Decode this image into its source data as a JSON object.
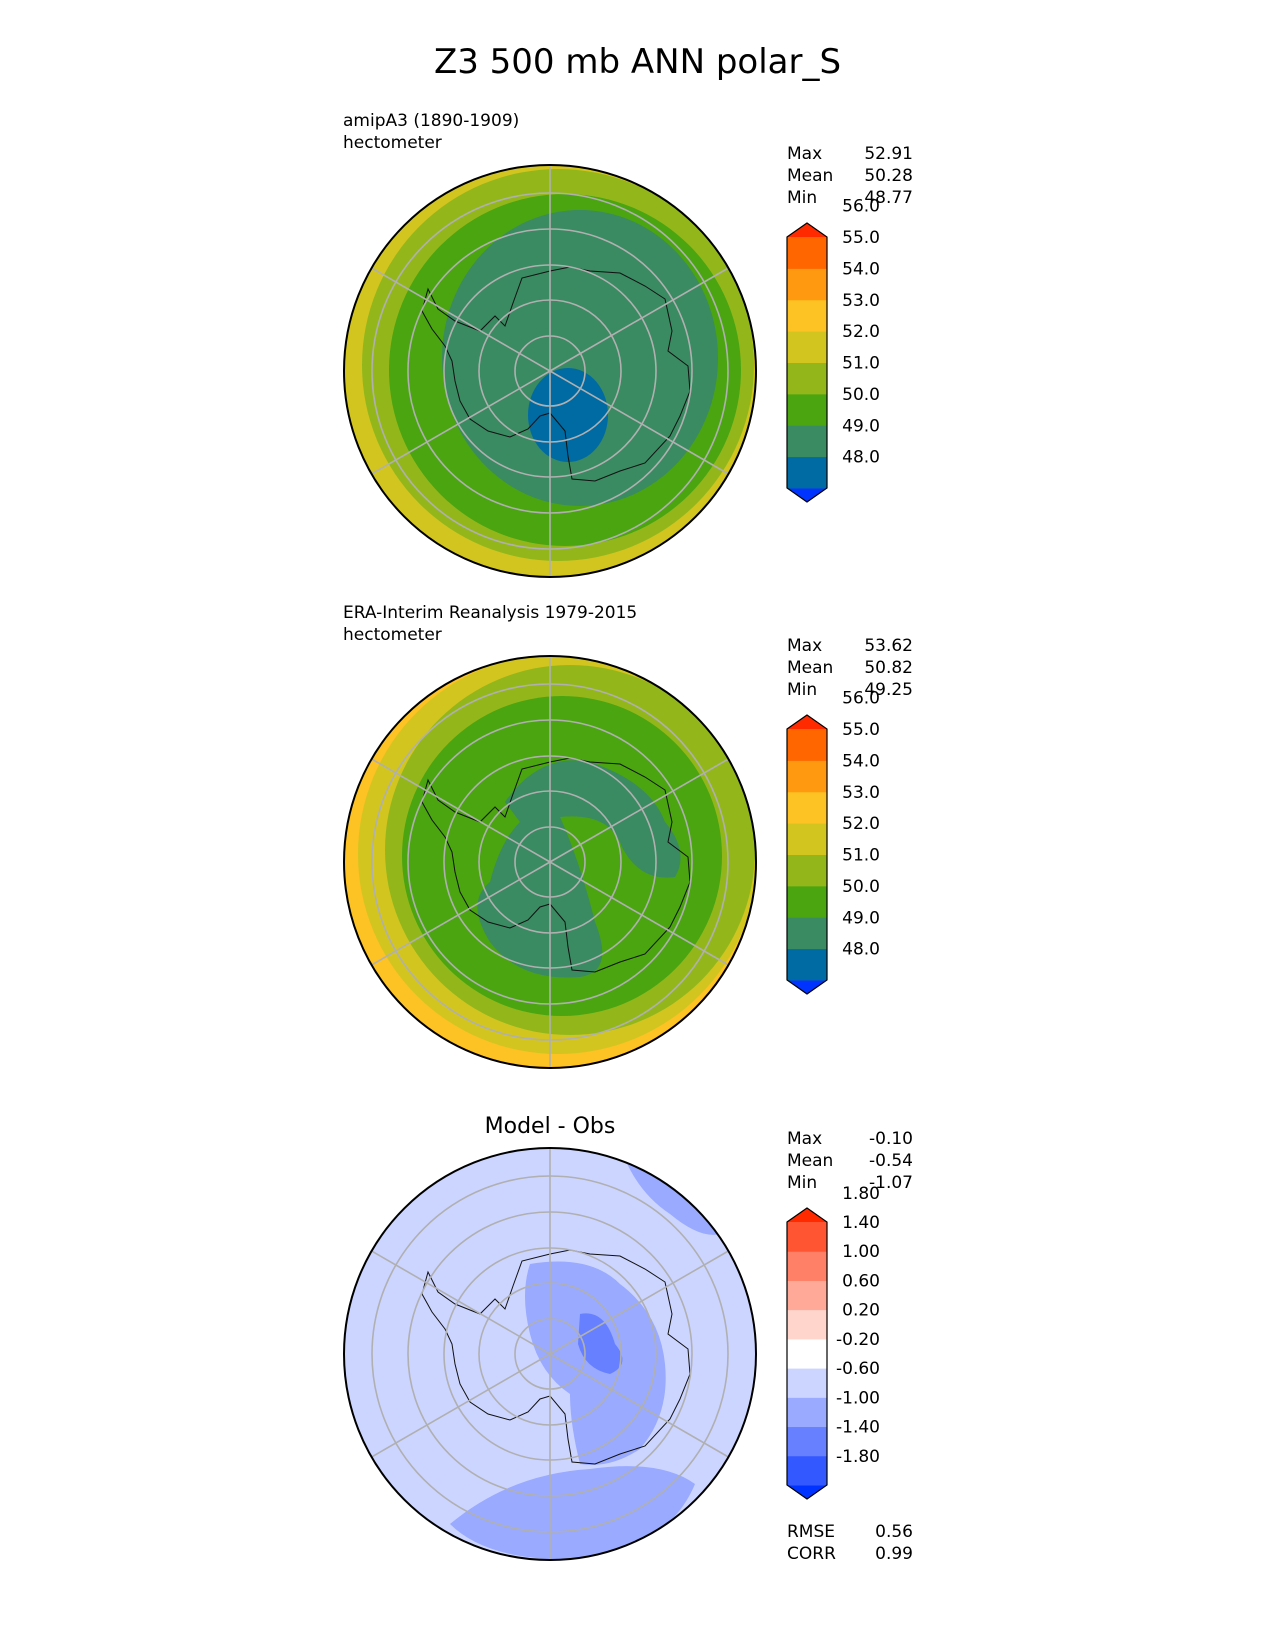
{
  "title": "Z3 500 mb ANN polar_S",
  "panels": [
    {
      "subtitle": "amipA3 (1890-1909)",
      "units": "hectometer",
      "stats": {
        "max_label": "Max",
        "max": "52.91",
        "mean_label": "Mean",
        "mean": "50.28",
        "min_label": "Min",
        "min": "48.77"
      }
    },
    {
      "subtitle": "ERA-Interim Reanalysis 1979-2015",
      "units": "hectometer",
      "stats": {
        "max_label": "Max",
        "max": "53.62",
        "mean_label": "Mean",
        "mean": "50.82",
        "min_label": "Min",
        "min": "49.25"
      }
    },
    {
      "subtitle": "Model - Obs",
      "stats": {
        "max_label": "Max",
        "max": "-0.10",
        "mean_label": "Mean",
        "mean": "-0.54",
        "min_label": "Min",
        "min": "-1.07"
      },
      "metrics": {
        "rmse_label": "RMSE",
        "rmse": "0.56",
        "corr_label": "CORR",
        "corr": "0.99"
      }
    }
  ],
  "chart_data": [
    {
      "type": "heatmap",
      "projection": "south polar stereographic",
      "title": "amipA3 (1890-1909)",
      "units": "hectometer",
      "colorbar": {
        "levels": [
          "48.0",
          "49.0",
          "50.0",
          "51.0",
          "52.0",
          "53.0",
          "54.0",
          "55.0",
          "56.0"
        ],
        "colors": [
          "#0033ff",
          "#006aa3",
          "#3a8a62",
          "#4aa511",
          "#93b71a",
          "#d2c520",
          "#fdc223",
          "#ff9a10",
          "#ff6600",
          "#ff2a00"
        ],
        "extend": "both"
      }
    },
    {
      "type": "heatmap",
      "projection": "south polar stereographic",
      "title": "ERA-Interim Reanalysis 1979-2015",
      "units": "hectometer",
      "colorbar": {
        "levels": [
          "48.0",
          "49.0",
          "50.0",
          "51.0",
          "52.0",
          "53.0",
          "54.0",
          "55.0",
          "56.0"
        ],
        "colors": [
          "#0033ff",
          "#006aa3",
          "#3a8a62",
          "#4aa511",
          "#93b71a",
          "#d2c520",
          "#fdc223",
          "#ff9a10",
          "#ff6600",
          "#ff2a00"
        ],
        "extend": "both"
      }
    },
    {
      "type": "heatmap",
      "projection": "south polar stereographic",
      "title": "Model - Obs",
      "colorbar": {
        "levels": [
          "-1.80",
          "-1.40",
          "-1.00",
          "-0.60",
          "-0.20",
          "0.20",
          "0.60",
          "1.00",
          "1.40",
          "1.80"
        ],
        "colors": [
          "#0033ff",
          "#3358ff",
          "#6680ff",
          "#99aaff",
          "#ccd5ff",
          "#ffffff",
          "#ffd5cc",
          "#ffaa99",
          "#ff8066",
          "#ff5533",
          "#ff2a00"
        ],
        "extend": "both"
      }
    }
  ]
}
